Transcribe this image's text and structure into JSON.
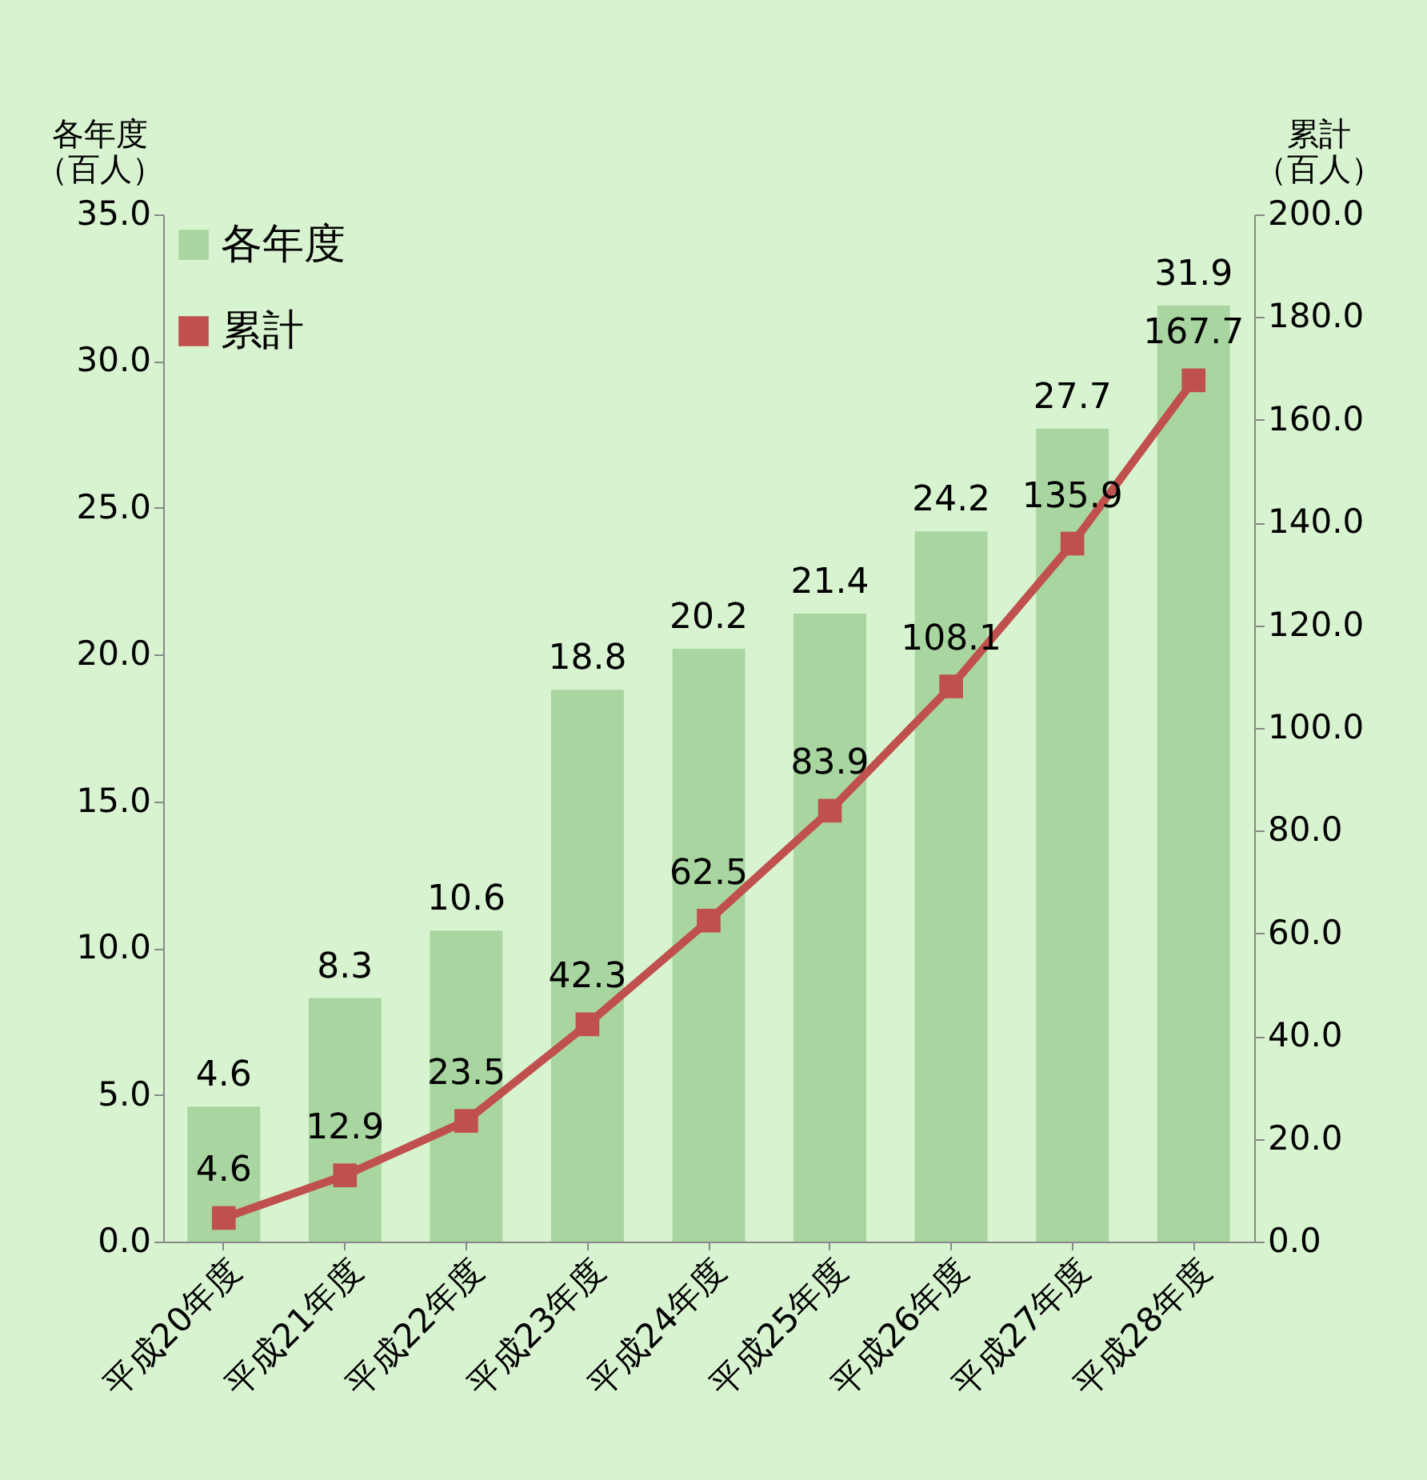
{
  "chart_data": {
    "type": "bar",
    "categories": [
      "平成20年度",
      "平成21年度",
      "平成22年度",
      "平成23年度",
      "平成24年度",
      "平成25年度",
      "平成26年度",
      "平成27年度",
      "平成28年度"
    ],
    "ylabel": "各年度（百人）",
    "y2label": "累計（百人）",
    "series": [
      {
        "name": "各年度",
        "color": "#a9d6a0",
        "values": [
          4.6,
          8.3,
          10.6,
          18.8,
          20.2,
          21.4,
          24.2,
          27.7,
          31.9
        ]
      },
      {
        "name": "累計",
        "type": "line",
        "axis": "y2",
        "color": "#c0504d",
        "values": [
          4.6,
          12.9,
          23.5,
          42.3,
          62.5,
          83.9,
          108.1,
          135.9,
          167.7
        ]
      }
    ],
    "ylim": [
      0,
      35
    ],
    "yticks": [
      {
        "value": 0,
        "label": "0.0"
      },
      {
        "value": 5,
        "label": "5.0"
      },
      {
        "value": 10,
        "label": "10.0"
      },
      {
        "value": 15,
        "label": "15.0"
      },
      {
        "value": 20,
        "label": "20.0"
      },
      {
        "value": 25,
        "label": "25.0"
      },
      {
        "value": 30,
        "label": "30.0"
      },
      {
        "value": 35,
        "label": "35.0"
      }
    ],
    "y2lim": [
      0,
      200
    ],
    "y2ticks": [
      {
        "value": 0,
        "label": "0.0"
      },
      {
        "value": 20,
        "label": "20.0"
      },
      {
        "value": 40,
        "label": "40.0"
      },
      {
        "value": 60,
        "label": "60.0"
      },
      {
        "value": 80,
        "label": "80.0"
      },
      {
        "value": 100,
        "label": "100.0"
      },
      {
        "value": 120,
        "label": "120.0"
      },
      {
        "value": 140,
        "label": "140.0"
      },
      {
        "value": 160,
        "label": "160.0"
      },
      {
        "value": 180,
        "label": "180.0"
      },
      {
        "value": 200,
        "label": "200.0"
      }
    ],
    "data_labels": true,
    "legend": "top left",
    "marker": "square",
    "line_style": "solid"
  }
}
